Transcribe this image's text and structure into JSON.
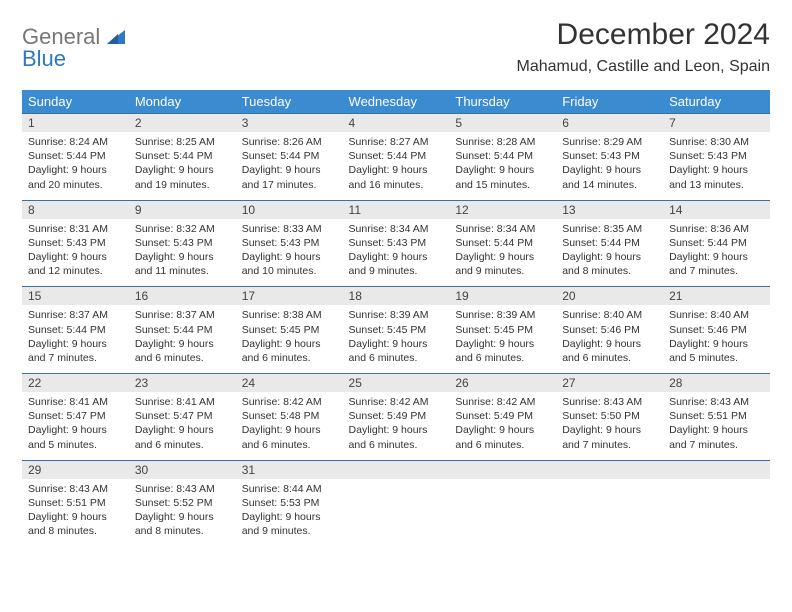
{
  "logo": {
    "word1": "General",
    "word2": "Blue"
  },
  "title": "December 2024",
  "location": "Mahamud, Castille and Leon, Spain",
  "colors": {
    "header_bg": "#3b8bd0",
    "header_text": "#ffffff",
    "daynum_bg": "#e9e9e9",
    "row_border": "#3b6fa5",
    "logo_blue": "#2f78c2"
  },
  "dayHeaders": [
    "Sunday",
    "Monday",
    "Tuesday",
    "Wednesday",
    "Thursday",
    "Friday",
    "Saturday"
  ],
  "weeks": [
    [
      {
        "n": "1",
        "sunrise": "8:24 AM",
        "sunset": "5:44 PM",
        "dl": "9 hours and 20 minutes."
      },
      {
        "n": "2",
        "sunrise": "8:25 AM",
        "sunset": "5:44 PM",
        "dl": "9 hours and 19 minutes."
      },
      {
        "n": "3",
        "sunrise": "8:26 AM",
        "sunset": "5:44 PM",
        "dl": "9 hours and 17 minutes."
      },
      {
        "n": "4",
        "sunrise": "8:27 AM",
        "sunset": "5:44 PM",
        "dl": "9 hours and 16 minutes."
      },
      {
        "n": "5",
        "sunrise": "8:28 AM",
        "sunset": "5:44 PM",
        "dl": "9 hours and 15 minutes."
      },
      {
        "n": "6",
        "sunrise": "8:29 AM",
        "sunset": "5:43 PM",
        "dl": "9 hours and 14 minutes."
      },
      {
        "n": "7",
        "sunrise": "8:30 AM",
        "sunset": "5:43 PM",
        "dl": "9 hours and 13 minutes."
      }
    ],
    [
      {
        "n": "8",
        "sunrise": "8:31 AM",
        "sunset": "5:43 PM",
        "dl": "9 hours and 12 minutes."
      },
      {
        "n": "9",
        "sunrise": "8:32 AM",
        "sunset": "5:43 PM",
        "dl": "9 hours and 11 minutes."
      },
      {
        "n": "10",
        "sunrise": "8:33 AM",
        "sunset": "5:43 PM",
        "dl": "9 hours and 10 minutes."
      },
      {
        "n": "11",
        "sunrise": "8:34 AM",
        "sunset": "5:43 PM",
        "dl": "9 hours and 9 minutes."
      },
      {
        "n": "12",
        "sunrise": "8:34 AM",
        "sunset": "5:44 PM",
        "dl": "9 hours and 9 minutes."
      },
      {
        "n": "13",
        "sunrise": "8:35 AM",
        "sunset": "5:44 PM",
        "dl": "9 hours and 8 minutes."
      },
      {
        "n": "14",
        "sunrise": "8:36 AM",
        "sunset": "5:44 PM",
        "dl": "9 hours and 7 minutes."
      }
    ],
    [
      {
        "n": "15",
        "sunrise": "8:37 AM",
        "sunset": "5:44 PM",
        "dl": "9 hours and 7 minutes."
      },
      {
        "n": "16",
        "sunrise": "8:37 AM",
        "sunset": "5:44 PM",
        "dl": "9 hours and 6 minutes."
      },
      {
        "n": "17",
        "sunrise": "8:38 AM",
        "sunset": "5:45 PM",
        "dl": "9 hours and 6 minutes."
      },
      {
        "n": "18",
        "sunrise": "8:39 AM",
        "sunset": "5:45 PM",
        "dl": "9 hours and 6 minutes."
      },
      {
        "n": "19",
        "sunrise": "8:39 AM",
        "sunset": "5:45 PM",
        "dl": "9 hours and 6 minutes."
      },
      {
        "n": "20",
        "sunrise": "8:40 AM",
        "sunset": "5:46 PM",
        "dl": "9 hours and 6 minutes."
      },
      {
        "n": "21",
        "sunrise": "8:40 AM",
        "sunset": "5:46 PM",
        "dl": "9 hours and 5 minutes."
      }
    ],
    [
      {
        "n": "22",
        "sunrise": "8:41 AM",
        "sunset": "5:47 PM",
        "dl": "9 hours and 5 minutes."
      },
      {
        "n": "23",
        "sunrise": "8:41 AM",
        "sunset": "5:47 PM",
        "dl": "9 hours and 6 minutes."
      },
      {
        "n": "24",
        "sunrise": "8:42 AM",
        "sunset": "5:48 PM",
        "dl": "9 hours and 6 minutes."
      },
      {
        "n": "25",
        "sunrise": "8:42 AM",
        "sunset": "5:49 PM",
        "dl": "9 hours and 6 minutes."
      },
      {
        "n": "26",
        "sunrise": "8:42 AM",
        "sunset": "5:49 PM",
        "dl": "9 hours and 6 minutes."
      },
      {
        "n": "27",
        "sunrise": "8:43 AM",
        "sunset": "5:50 PM",
        "dl": "9 hours and 7 minutes."
      },
      {
        "n": "28",
        "sunrise": "8:43 AM",
        "sunset": "5:51 PM",
        "dl": "9 hours and 7 minutes."
      }
    ],
    [
      {
        "n": "29",
        "sunrise": "8:43 AM",
        "sunset": "5:51 PM",
        "dl": "9 hours and 8 minutes."
      },
      {
        "n": "30",
        "sunrise": "8:43 AM",
        "sunset": "5:52 PM",
        "dl": "9 hours and 8 minutes."
      },
      {
        "n": "31",
        "sunrise": "8:44 AM",
        "sunset": "5:53 PM",
        "dl": "9 hours and 9 minutes."
      },
      null,
      null,
      null,
      null
    ]
  ],
  "labels": {
    "sunrise": "Sunrise:",
    "sunset": "Sunset:",
    "daylight": "Daylight:"
  }
}
